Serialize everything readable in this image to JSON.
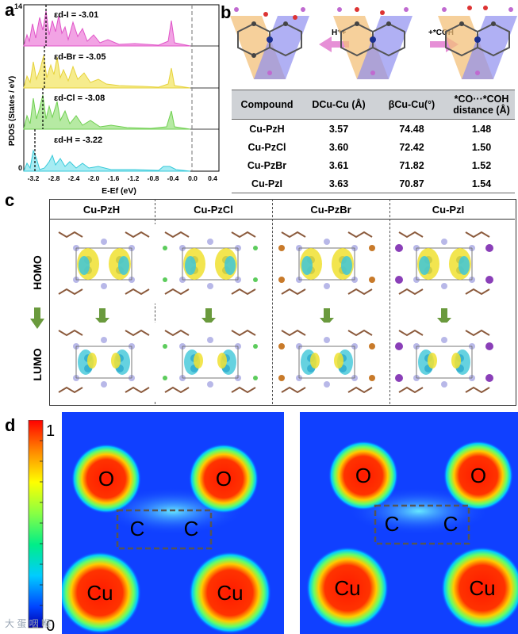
{
  "panels": {
    "a": "a",
    "b": "b",
    "c": "c",
    "d": "d"
  },
  "pdos": {
    "ylabel": "PDOS (States / eV)",
    "xlabel": "E-Ef (eV)",
    "y_top_tick": "14",
    "y_zero_tick": "0",
    "x_ticks": [
      "-3.2",
      "-2.8",
      "-2.4",
      "-2.0",
      "-1.6",
      "-1.2",
      "-0.8",
      "-0.4",
      "0.0",
      "0.4"
    ],
    "traces": [
      {
        "label": "εd-I = -3.01",
        "color": "#e055c8",
        "fill": "#f2a3e4"
      },
      {
        "label": "εd-Br = -3.05",
        "color": "#e6d23c",
        "fill": "#f6ec8d"
      },
      {
        "label": "εd-Cl = -3.08",
        "color": "#6fcf50",
        "fill": "#b6eaa3"
      },
      {
        "label": "εd-H = -3.22",
        "color": "#37c9d9",
        "fill": "#a6ecf3"
      }
    ]
  },
  "mechanism": {
    "left_arrow_label": "H⁺+",
    "right_arrow_label": "+*COH"
  },
  "table": {
    "headers": [
      "Compound",
      "DCu-Cu (Å)",
      "βCu-Cu(°)",
      "*CO···*COH distance (Å)"
    ],
    "rows": [
      [
        "Cu-PzH",
        "3.57",
        "74.48",
        "1.48"
      ],
      [
        "Cu-PzCl",
        "3.60",
        "72.42",
        "1.50"
      ],
      [
        "Cu-PzBr",
        "3.61",
        "71.82",
        "1.52"
      ],
      [
        "Cu-PzI",
        "3.63",
        "70.87",
        "1.54"
      ]
    ]
  },
  "orbitals": {
    "columns": [
      "Cu-PzH",
      "Cu-PzCl",
      "Cu-PzBr",
      "Cu-PzI"
    ],
    "rows": [
      "HOMO",
      "LUMO"
    ]
  },
  "elf": {
    "scale_max": "1",
    "scale_min": "0",
    "atoms": [
      "O",
      "O",
      "C",
      "C",
      "Cu",
      "Cu"
    ]
  },
  "watermark": "大 蛋 咽 喉"
}
